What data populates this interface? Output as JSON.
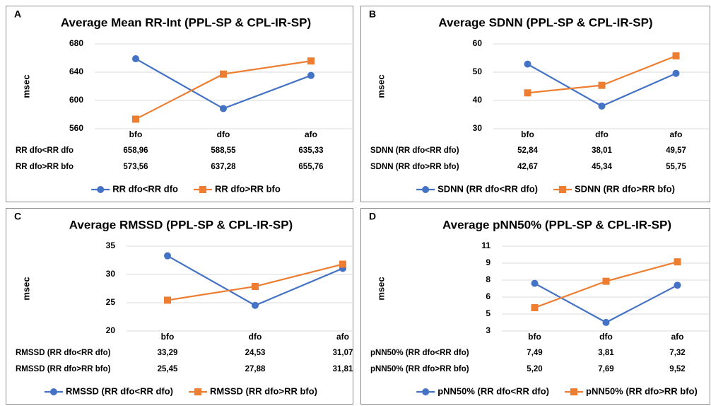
{
  "chart_data": [
    {
      "type": "line",
      "panel_label": "A",
      "title": "Average Mean RR-Int (PPL-SP & CPL-IR-SP)",
      "y_label": "msec",
      "categories": [
        "bfo",
        "dfo",
        "afo"
      ],
      "ylim": [
        560,
        680
      ],
      "yticks": [
        560,
        600,
        640,
        680
      ],
      "grid": true,
      "series": [
        {
          "name": "RR dfo<RR dfo",
          "color": "#4472c4",
          "marker": "circle",
          "values": [
            658.96,
            588.55,
            635.33
          ],
          "value_labels": [
            "658,96",
            "588,55",
            "635,33"
          ]
        },
        {
          "name": "RR dfo>RR bfo",
          "color": "#ed7d31",
          "marker": "square",
          "values": [
            573.56,
            637.28,
            655.76
          ],
          "value_labels": [
            "573,56",
            "637,28",
            "655,76"
          ]
        }
      ]
    },
    {
      "type": "line",
      "panel_label": "B",
      "title": "Average SDNN (PPL-SP & CPL-IR-SP)",
      "y_label": "msec",
      "categories": [
        "bfo",
        "dfo",
        "afo"
      ],
      "ylim": [
        30,
        60
      ],
      "yticks": [
        30,
        40,
        50,
        60
      ],
      "grid": true,
      "series": [
        {
          "name": "SDNN (RR dfo<RR dfo)",
          "color": "#4472c4",
          "marker": "circle",
          "values": [
            52.84,
            38.01,
            49.57
          ],
          "value_labels": [
            "52,84",
            "38,01",
            "49,57"
          ]
        },
        {
          "name": "SDNN (RR dfo>RR bfo)",
          "color": "#ed7d31",
          "marker": "square",
          "values": [
            42.67,
            45.34,
            55.75
          ],
          "value_labels": [
            "42,67",
            "45,34",
            "55,75"
          ]
        }
      ]
    },
    {
      "type": "line",
      "panel_label": "C",
      "title": "Average RMSSD (PPL-SP & CPL-IR-SP)",
      "y_label": "msec",
      "categories": [
        "bfo",
        "dfo",
        "afo"
      ],
      "ylim": [
        20,
        35
      ],
      "yticks": [
        20,
        25,
        30,
        35
      ],
      "grid": true,
      "series": [
        {
          "name": "RMSSD (RR dfo<RR dfo)",
          "color": "#4472c4",
          "marker": "circle",
          "values": [
            33.29,
            24.53,
            31.07
          ],
          "value_labels": [
            "33,29",
            "24,53",
            "31,07"
          ]
        },
        {
          "name": "RMSSD (RR dfo>RR bfo)",
          "color": "#ed7d31",
          "marker": "square",
          "values": [
            25.45,
            27.88,
            31.81
          ],
          "value_labels": [
            "25,45",
            "27,88",
            "31,81"
          ]
        }
      ]
    },
    {
      "type": "line",
      "panel_label": "D",
      "title": "Average pNN50% (PPL-SP & CPL-IR-SP)",
      "y_label": "msec",
      "categories": [
        "bfo",
        "dfo",
        "afo"
      ],
      "ylim": [
        3,
        11
      ],
      "yticks": [
        3,
        {
          "value": 4.6,
          "label": "5"
        },
        {
          "value": 6.2,
          "label": "6"
        },
        {
          "value": 7.8,
          "label": "8"
        },
        {
          "value": 9.4,
          "label": "9"
        },
        11
      ],
      "grid": true,
      "series": [
        {
          "name": "pNN50% (RR dfo<RR dfo)",
          "color": "#4472c4",
          "marker": "circle",
          "values": [
            7.49,
            3.81,
            7.32
          ],
          "value_labels": [
            "7,49",
            "3,81",
            "7,32"
          ]
        },
        {
          "name": "pNN50% (RR dfo>RR bfo)",
          "color": "#ed7d31",
          "marker": "square",
          "values": [
            5.2,
            7.69,
            9.52
          ],
          "value_labels": [
            "5,20",
            "7,69",
            "9,52"
          ]
        }
      ]
    }
  ]
}
